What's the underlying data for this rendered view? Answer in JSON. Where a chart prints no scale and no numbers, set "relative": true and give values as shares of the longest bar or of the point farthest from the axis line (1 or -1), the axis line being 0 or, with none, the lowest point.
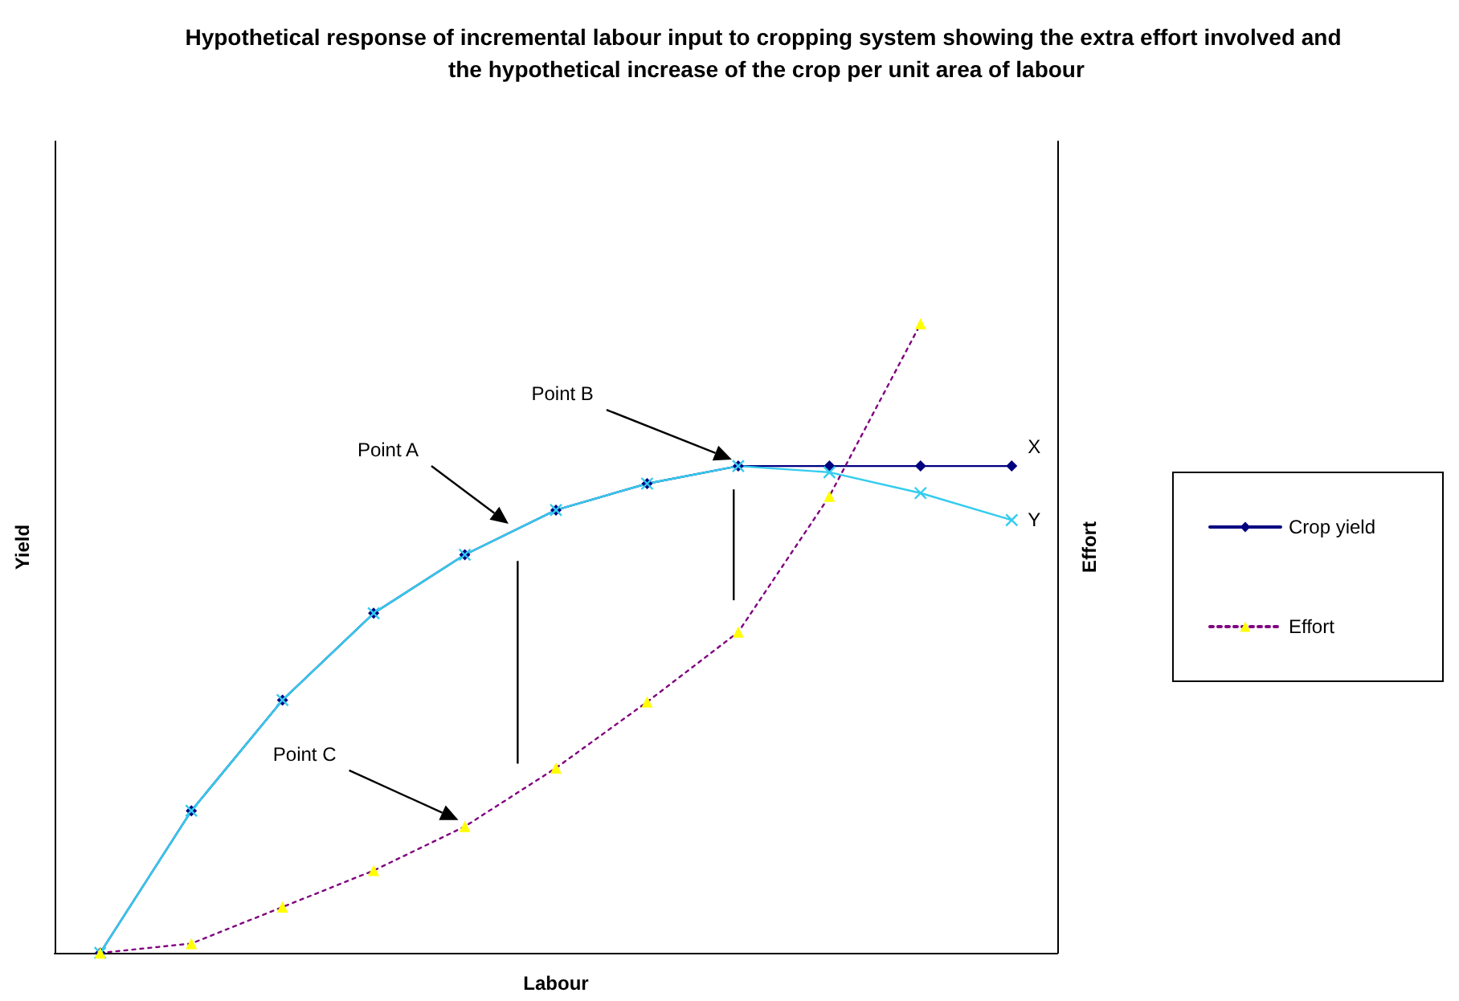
{
  "chart_data": {
    "type": "line",
    "relative": true,
    "title": "Hypothetical response of incremental labour input to cropping system showing the extra effort involved and the hypothetical increase of the crop per unit area of labour",
    "xlabel": "Labour",
    "ylabel": "Yield",
    "y2label": "Effort",
    "categories": [
      null,
      null,
      null,
      null,
      null,
      null,
      null,
      null,
      null,
      null,
      null
    ],
    "legend": "right",
    "grid": false,
    "series": [
      {
        "name": "Crop yield",
        "color": "#000080",
        "marker": "diamond",
        "line_style": "solid",
        "values": [
          0,
          0.226,
          0.402,
          0.54,
          0.633,
          0.704,
          0.746,
          0.774,
          0.774,
          0.774,
          0.774
        ]
      },
      {
        "color": "#33ccee",
        "marker": "cross",
        "line_style": "solid",
        "values": [
          0,
          0.226,
          0.402,
          0.54,
          0.633,
          0.704,
          0.746,
          0.774,
          0.764,
          0.731,
          0.688
        ]
      },
      {
        "name": "Effort",
        "color": "#800080",
        "marker": "triangle",
        "line_style": "dotted",
        "values": [
          0,
          0.015,
          0.073,
          0.131,
          0.201,
          0.294,
          0.399,
          0.51,
          0.726,
          1,
          null
        ]
      }
    ],
    "annotations": [
      "Point A",
      "Point B",
      "Point C",
      "X",
      "Y"
    ]
  }
}
